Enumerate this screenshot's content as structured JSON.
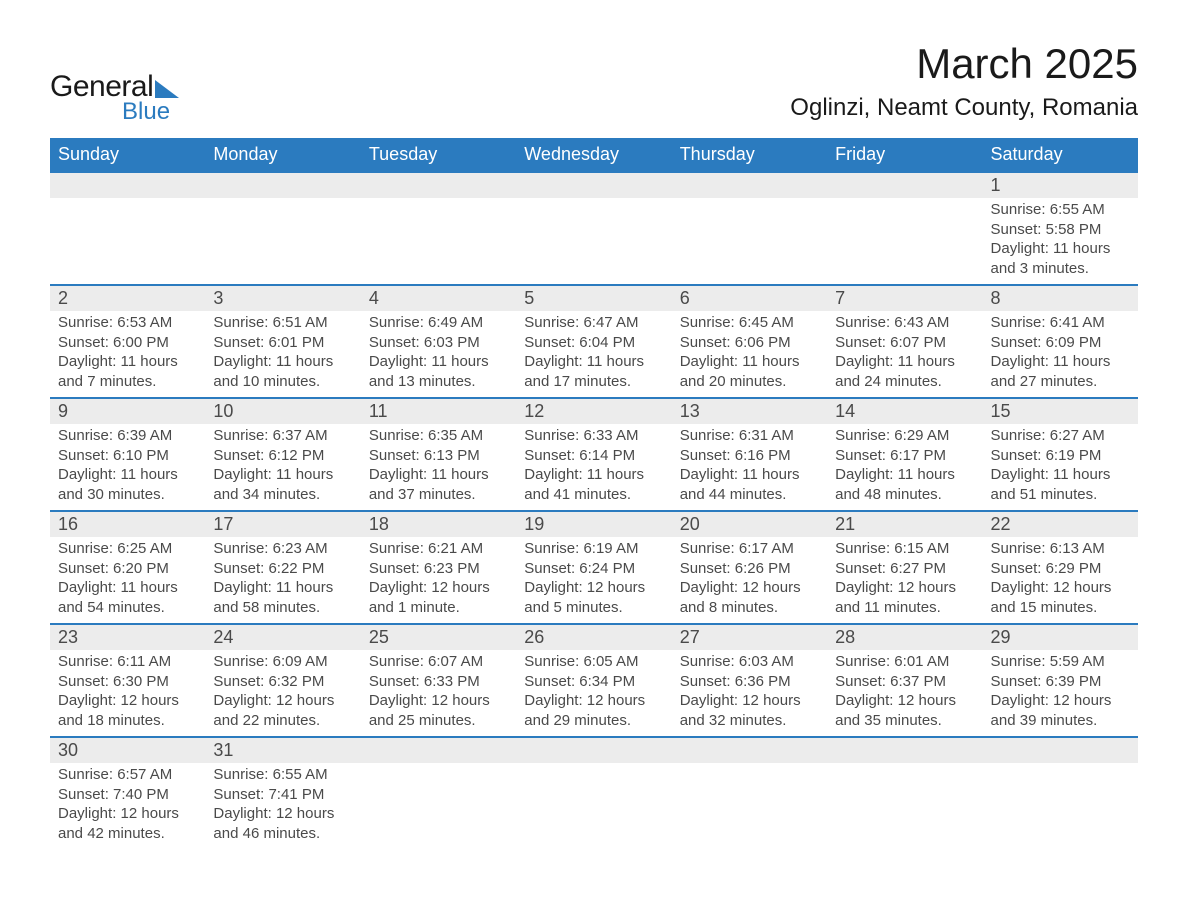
{
  "logo": {
    "text1": "General",
    "text2": "Blue"
  },
  "title": "March 2025",
  "location": "Oglinzi, Neamt County, Romania",
  "colors": {
    "header_bg": "#2b7bbf",
    "header_text": "#ffffff",
    "daynum_bg": "#ececec",
    "row_divider": "#2b7bbf",
    "body_text": "#4a4a4a",
    "title_text": "#1a1a1a",
    "page_bg": "#ffffff"
  },
  "typography": {
    "title_fontsize": 42,
    "location_fontsize": 24,
    "header_fontsize": 18,
    "daynum_fontsize": 18,
    "detail_fontsize": 15
  },
  "week_headers": [
    "Sunday",
    "Monday",
    "Tuesday",
    "Wednesday",
    "Thursday",
    "Friday",
    "Saturday"
  ],
  "weeks": [
    [
      null,
      null,
      null,
      null,
      null,
      null,
      {
        "n": "1",
        "sr": "Sunrise: 6:55 AM",
        "ss": "Sunset: 5:58 PM",
        "d1": "Daylight: 11 hours",
        "d2": "and 3 minutes."
      }
    ],
    [
      {
        "n": "2",
        "sr": "Sunrise: 6:53 AM",
        "ss": "Sunset: 6:00 PM",
        "d1": "Daylight: 11 hours",
        "d2": "and 7 minutes."
      },
      {
        "n": "3",
        "sr": "Sunrise: 6:51 AM",
        "ss": "Sunset: 6:01 PM",
        "d1": "Daylight: 11 hours",
        "d2": "and 10 minutes."
      },
      {
        "n": "4",
        "sr": "Sunrise: 6:49 AM",
        "ss": "Sunset: 6:03 PM",
        "d1": "Daylight: 11 hours",
        "d2": "and 13 minutes."
      },
      {
        "n": "5",
        "sr": "Sunrise: 6:47 AM",
        "ss": "Sunset: 6:04 PM",
        "d1": "Daylight: 11 hours",
        "d2": "and 17 minutes."
      },
      {
        "n": "6",
        "sr": "Sunrise: 6:45 AM",
        "ss": "Sunset: 6:06 PM",
        "d1": "Daylight: 11 hours",
        "d2": "and 20 minutes."
      },
      {
        "n": "7",
        "sr": "Sunrise: 6:43 AM",
        "ss": "Sunset: 6:07 PM",
        "d1": "Daylight: 11 hours",
        "d2": "and 24 minutes."
      },
      {
        "n": "8",
        "sr": "Sunrise: 6:41 AM",
        "ss": "Sunset: 6:09 PM",
        "d1": "Daylight: 11 hours",
        "d2": "and 27 minutes."
      }
    ],
    [
      {
        "n": "9",
        "sr": "Sunrise: 6:39 AM",
        "ss": "Sunset: 6:10 PM",
        "d1": "Daylight: 11 hours",
        "d2": "and 30 minutes."
      },
      {
        "n": "10",
        "sr": "Sunrise: 6:37 AM",
        "ss": "Sunset: 6:12 PM",
        "d1": "Daylight: 11 hours",
        "d2": "and 34 minutes."
      },
      {
        "n": "11",
        "sr": "Sunrise: 6:35 AM",
        "ss": "Sunset: 6:13 PM",
        "d1": "Daylight: 11 hours",
        "d2": "and 37 minutes."
      },
      {
        "n": "12",
        "sr": "Sunrise: 6:33 AM",
        "ss": "Sunset: 6:14 PM",
        "d1": "Daylight: 11 hours",
        "d2": "and 41 minutes."
      },
      {
        "n": "13",
        "sr": "Sunrise: 6:31 AM",
        "ss": "Sunset: 6:16 PM",
        "d1": "Daylight: 11 hours",
        "d2": "and 44 minutes."
      },
      {
        "n": "14",
        "sr": "Sunrise: 6:29 AM",
        "ss": "Sunset: 6:17 PM",
        "d1": "Daylight: 11 hours",
        "d2": "and 48 minutes."
      },
      {
        "n": "15",
        "sr": "Sunrise: 6:27 AM",
        "ss": "Sunset: 6:19 PM",
        "d1": "Daylight: 11 hours",
        "d2": "and 51 minutes."
      }
    ],
    [
      {
        "n": "16",
        "sr": "Sunrise: 6:25 AM",
        "ss": "Sunset: 6:20 PM",
        "d1": "Daylight: 11 hours",
        "d2": "and 54 minutes."
      },
      {
        "n": "17",
        "sr": "Sunrise: 6:23 AM",
        "ss": "Sunset: 6:22 PM",
        "d1": "Daylight: 11 hours",
        "d2": "and 58 minutes."
      },
      {
        "n": "18",
        "sr": "Sunrise: 6:21 AM",
        "ss": "Sunset: 6:23 PM",
        "d1": "Daylight: 12 hours",
        "d2": "and 1 minute."
      },
      {
        "n": "19",
        "sr": "Sunrise: 6:19 AM",
        "ss": "Sunset: 6:24 PM",
        "d1": "Daylight: 12 hours",
        "d2": "and 5 minutes."
      },
      {
        "n": "20",
        "sr": "Sunrise: 6:17 AM",
        "ss": "Sunset: 6:26 PM",
        "d1": "Daylight: 12 hours",
        "d2": "and 8 minutes."
      },
      {
        "n": "21",
        "sr": "Sunrise: 6:15 AM",
        "ss": "Sunset: 6:27 PM",
        "d1": "Daylight: 12 hours",
        "d2": "and 11 minutes."
      },
      {
        "n": "22",
        "sr": "Sunrise: 6:13 AM",
        "ss": "Sunset: 6:29 PM",
        "d1": "Daylight: 12 hours",
        "d2": "and 15 minutes."
      }
    ],
    [
      {
        "n": "23",
        "sr": "Sunrise: 6:11 AM",
        "ss": "Sunset: 6:30 PM",
        "d1": "Daylight: 12 hours",
        "d2": "and 18 minutes."
      },
      {
        "n": "24",
        "sr": "Sunrise: 6:09 AM",
        "ss": "Sunset: 6:32 PM",
        "d1": "Daylight: 12 hours",
        "d2": "and 22 minutes."
      },
      {
        "n": "25",
        "sr": "Sunrise: 6:07 AM",
        "ss": "Sunset: 6:33 PM",
        "d1": "Daylight: 12 hours",
        "d2": "and 25 minutes."
      },
      {
        "n": "26",
        "sr": "Sunrise: 6:05 AM",
        "ss": "Sunset: 6:34 PM",
        "d1": "Daylight: 12 hours",
        "d2": "and 29 minutes."
      },
      {
        "n": "27",
        "sr": "Sunrise: 6:03 AM",
        "ss": "Sunset: 6:36 PM",
        "d1": "Daylight: 12 hours",
        "d2": "and 32 minutes."
      },
      {
        "n": "28",
        "sr": "Sunrise: 6:01 AM",
        "ss": "Sunset: 6:37 PM",
        "d1": "Daylight: 12 hours",
        "d2": "and 35 minutes."
      },
      {
        "n": "29",
        "sr": "Sunrise: 5:59 AM",
        "ss": "Sunset: 6:39 PM",
        "d1": "Daylight: 12 hours",
        "d2": "and 39 minutes."
      }
    ],
    [
      {
        "n": "30",
        "sr": "Sunrise: 6:57 AM",
        "ss": "Sunset: 7:40 PM",
        "d1": "Daylight: 12 hours",
        "d2": "and 42 minutes."
      },
      {
        "n": "31",
        "sr": "Sunrise: 6:55 AM",
        "ss": "Sunset: 7:41 PM",
        "d1": "Daylight: 12 hours",
        "d2": "and 46 minutes."
      },
      null,
      null,
      null,
      null,
      null
    ]
  ]
}
